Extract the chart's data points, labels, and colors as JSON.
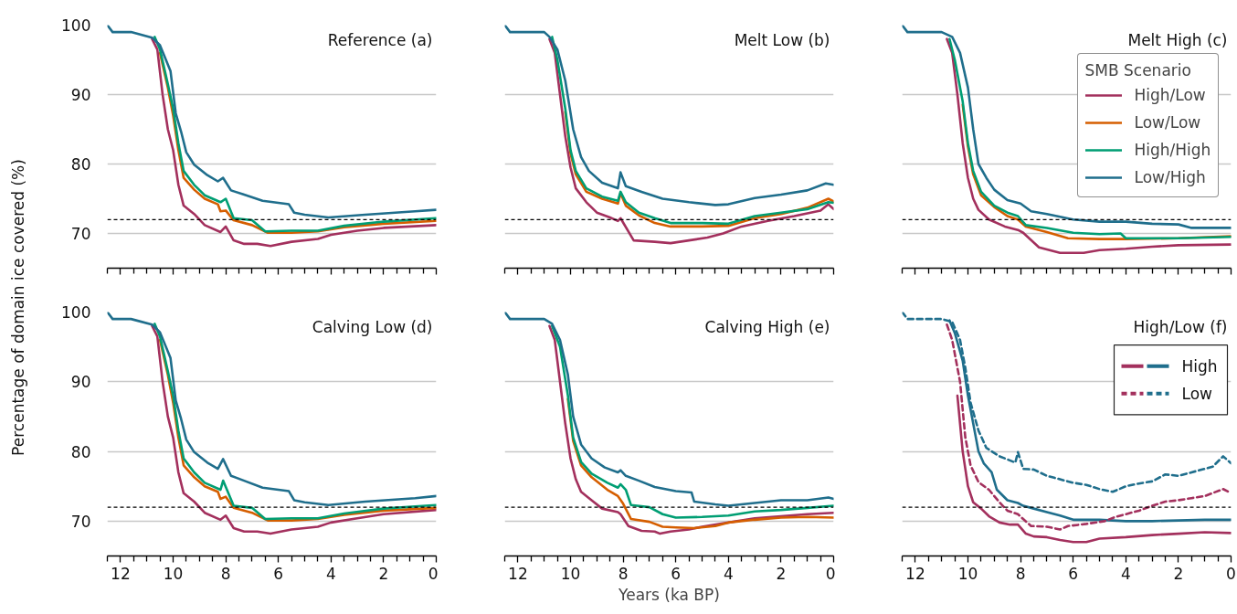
{
  "chart_data": [
    {
      "type": "line",
      "title": "Reference (a)",
      "xlim": [
        12.5,
        0
      ],
      "ylim": [
        65,
        100
      ],
      "yticks": [
        70,
        80,
        90,
        100
      ],
      "xticks": [
        0,
        {
          "value": 0.5,
          "label": null
        },
        {
          "value": 1,
          "label": null
        },
        {
          "value": 1.5,
          "label": null
        },
        2,
        {
          "value": 2.5,
          "label": null
        },
        {
          "value": 3,
          "label": null
        },
        {
          "value": 3.5,
          "label": null
        },
        4,
        {
          "value": 4.5,
          "label": null
        },
        {
          "value": 5,
          "label": null
        },
        {
          "value": 5.5,
          "label": null
        },
        6,
        {
          "value": 6.5,
          "label": null
        },
        {
          "value": 7,
          "label": null
        },
        {
          "value": 7.5,
          "label": null
        },
        8,
        {
          "value": 8.5,
          "label": null
        },
        {
          "value": 9,
          "label": null
        },
        {
          "value": 9.5,
          "label": null
        },
        10,
        {
          "value": 10.5,
          "label": null
        },
        {
          "value": 11,
          "label": null
        },
        {
          "value": 11.5,
          "label": null
        },
        12,
        {
          "value": 12.5,
          "label": null
        }
      ],
      "grid": "y",
      "tick_labels": "y",
      "legend": false,
      "ref_lines": [
        {
          "axis": "y",
          "value": 72,
          "color": "#000000",
          "line_style": "dashed"
        }
      ],
      "series": [
        {
          "color": "#a3305d",
          "x": [
            10.8,
            10.6,
            10.4,
            10.2,
            10,
            9.8,
            9.6,
            9.2,
            8.8,
            8.2,
            8.0,
            7.7,
            7.3,
            6.8,
            6.3,
            5.5,
            4.5,
            4,
            3,
            2,
            0
          ],
          "values": [
            98,
            96.5,
            90,
            85,
            82,
            77,
            74,
            72.8,
            71.2,
            70.2,
            71,
            69,
            68.5,
            68.5,
            68.2,
            68.8,
            69.2,
            69.8,
            70.4,
            70.8,
            71.2
          ]
        },
        {
          "color": "#d55e00",
          "x": [
            10.5,
            10.2,
            10,
            9.8,
            9.6,
            9.2,
            8.8,
            8.3,
            8.2,
            8.0,
            7.7,
            7,
            6.4,
            5.5,
            4.5,
            3.5,
            2,
            0
          ],
          "values": [
            96,
            91,
            87,
            82,
            78,
            76.3,
            75,
            74.2,
            73.2,
            73.3,
            71.9,
            71.2,
            70.1,
            70.1,
            70.3,
            70.9,
            71.4,
            71.8
          ]
        },
        {
          "color": "#009e73",
          "x": [
            10.7,
            10.5,
            10.2,
            10,
            9.8,
            9.6,
            9.2,
            8.8,
            8.2,
            8.0,
            7.7,
            7,
            6.5,
            5.5,
            4.5,
            3.5,
            2,
            0
          ],
          "values": [
            98.3,
            96.5,
            91.5,
            88,
            83,
            79,
            77,
            75.5,
            74.5,
            75,
            72.2,
            71.9,
            70.3,
            70.4,
            70.4,
            71.1,
            71.7,
            72.2
          ]
        },
        {
          "color": "#1f6e8c",
          "x": [
            12.5,
            12.3,
            11.6,
            10.8,
            10.5,
            10.1,
            9.9,
            9.7,
            9.5,
            9.2,
            8.7,
            8.3,
            8.1,
            7.8,
            7.3,
            6.6,
            5.6,
            5.4,
            5.0,
            4.1,
            2.7,
            0.8,
            0
          ],
          "values": [
            100,
            99,
            99,
            98.2,
            97.1,
            93.4,
            87.3,
            84.7,
            81.7,
            79.9,
            78.4,
            77.5,
            78,
            76.2,
            75.6,
            74.7,
            74.2,
            73,
            72.7,
            72.3,
            72.7,
            73.2,
            73.4
          ]
        }
      ]
    },
    {
      "type": "line",
      "title": "Melt Low (b)",
      "xlim": [
        12.5,
        0
      ],
      "ylim": [
        65,
        100
      ],
      "yticks": [
        70,
        80,
        90,
        100
      ],
      "xticks": [
        0,
        {
          "value": 0.5,
          "label": null
        },
        {
          "value": 1,
          "label": null
        },
        {
          "value": 1.5,
          "label": null
        },
        2,
        {
          "value": 2.5,
          "label": null
        },
        {
          "value": 3,
          "label": null
        },
        {
          "value": 3.5,
          "label": null
        },
        4,
        {
          "value": 4.5,
          "label": null
        },
        {
          "value": 5,
          "label": null
        },
        {
          "value": 5.5,
          "label": null
        },
        6,
        {
          "value": 6.5,
          "label": null
        },
        {
          "value": 7,
          "label": null
        },
        {
          "value": 7.5,
          "label": null
        },
        8,
        {
          "value": 8.5,
          "label": null
        },
        {
          "value": 9,
          "label": null
        },
        {
          "value": 9.5,
          "label": null
        },
        10,
        {
          "value": 10.5,
          "label": null
        },
        {
          "value": 11,
          "label": null
        },
        {
          "value": 11.5,
          "label": null
        },
        12,
        {
          "value": 12.5,
          "label": null
        }
      ],
      "grid": "y",
      "tick_labels": false,
      "legend": false,
      "ref_lines": [
        {
          "axis": "y",
          "value": 72,
          "color": "#000000",
          "line_style": "dashed"
        }
      ],
      "series": [
        {
          "color": "#a3305d",
          "x": [
            10.8,
            10.6,
            10.4,
            10.2,
            10,
            9.8,
            9.4,
            9,
            8.5,
            8.2,
            8.1,
            7.6,
            6.8,
            6.2,
            5.5,
            4.8,
            4.2,
            3.5,
            2.5,
            1.5,
            0.5,
            0.2,
            0
          ],
          "values": [
            98,
            96,
            90,
            84,
            79.5,
            76.5,
            74.5,
            73,
            72.3,
            71.8,
            72.2,
            69,
            68.8,
            68.6,
            69,
            69.4,
            70,
            71,
            71.8,
            72.5,
            73.3,
            74.2,
            73.5
          ]
        },
        {
          "color": "#d55e00",
          "x": [
            10.2,
            10,
            9.8,
            9.4,
            8.8,
            8.2,
            8.1,
            7.9,
            7.4,
            6.8,
            6.2,
            5,
            4,
            3,
            2,
            1,
            0.2,
            0
          ],
          "values": [
            87.5,
            81.5,
            78.5,
            76,
            75,
            74.3,
            75.8,
            74,
            72.6,
            71.5,
            71,
            71,
            71.1,
            72.2,
            72.8,
            73.7,
            75,
            74.6
          ]
        },
        {
          "color": "#009e73",
          "x": [
            10.7,
            10.5,
            10.2,
            10,
            9.8,
            9.4,
            8.8,
            8.2,
            8.1,
            7.9,
            7.4,
            6.8,
            6.2,
            5,
            4,
            3,
            2,
            1,
            0.2,
            0
          ],
          "values": [
            98.3,
            95,
            88,
            82,
            79,
            76.5,
            75.3,
            74.7,
            76,
            74.5,
            73,
            72.2,
            71.5,
            71.5,
            71.4,
            72.5,
            73,
            73.5,
            74.5,
            74.4
          ]
        },
        {
          "color": "#1f6e8c",
          "x": [
            12.5,
            12.3,
            11,
            10.8,
            10.5,
            10.2,
            9.9,
            9.6,
            9.3,
            8.8,
            8.2,
            8.1,
            7.9,
            7.3,
            6.5,
            5.5,
            4.5,
            4,
            3,
            2,
            1,
            0.3,
            0
          ],
          "values": [
            100,
            99,
            99,
            98.3,
            96.5,
            92,
            85,
            81,
            79,
            77.3,
            76.5,
            78.8,
            76.8,
            76,
            75,
            74.5,
            74.1,
            74.2,
            75.1,
            75.6,
            76.2,
            77.2,
            77
          ]
        }
      ]
    },
    {
      "type": "line",
      "title": "Melt High (c)",
      "legend_title": "SMB Scenario",
      "xlim": [
        12.5,
        0
      ],
      "ylim": [
        65,
        100
      ],
      "yticks": [
        70,
        80,
        90,
        100
      ],
      "xticks": [
        0,
        {
          "value": 0.5,
          "label": null
        },
        {
          "value": 1,
          "label": null
        },
        {
          "value": 1.5,
          "label": null
        },
        2,
        {
          "value": 2.5,
          "label": null
        },
        {
          "value": 3,
          "label": null
        },
        {
          "value": 3.5,
          "label": null
        },
        4,
        {
          "value": 4.5,
          "label": null
        },
        {
          "value": 5,
          "label": null
        },
        {
          "value": 5.5,
          "label": null
        },
        6,
        {
          "value": 6.5,
          "label": null
        },
        {
          "value": 7,
          "label": null
        },
        {
          "value": 7.5,
          "label": null
        },
        8,
        {
          "value": 8.5,
          "label": null
        },
        {
          "value": 9,
          "label": null
        },
        {
          "value": 9.5,
          "label": null
        },
        10,
        {
          "value": 10.5,
          "label": null
        },
        {
          "value": 11,
          "label": null
        },
        {
          "value": 11.5,
          "label": null
        },
        12,
        {
          "value": 12.5,
          "label": null
        }
      ],
      "grid": "y",
      "tick_labels": false,
      "legend": "top right",
      "ref_lines": [
        {
          "axis": "y",
          "value": 72,
          "color": "#000000",
          "line_style": "dashed"
        }
      ],
      "series": [
        {
          "name": "High/Low",
          "color": "#a3305d",
          "x": [
            10.8,
            10.6,
            10.4,
            10.2,
            10,
            9.8,
            9.6,
            9.2,
            8.6,
            8.1,
            7.9,
            7.3,
            6.5,
            5.6,
            5,
            4,
            3,
            2,
            0
          ],
          "values": [
            98,
            96,
            90,
            83,
            78,
            75,
            73.4,
            72,
            71,
            70.5,
            70.1,
            68,
            67.2,
            67.2,
            67.6,
            67.8,
            68.1,
            68.3,
            68.4
          ]
        },
        {
          "name": "Low/Low",
          "color": "#d55e00",
          "x": [
            10.2,
            10,
            9.8,
            9.5,
            9,
            8.5,
            8.1,
            7.8,
            7,
            6.2,
            5,
            4,
            2,
            0
          ],
          "values": [
            88.5,
            82.5,
            78.5,
            75.5,
            73.8,
            72.5,
            72,
            71,
            70.2,
            69.3,
            69.2,
            69.2,
            69.3,
            69.6
          ]
        },
        {
          "name": "High/High",
          "color": "#009e73",
          "x": [
            10.7,
            10.5,
            10.2,
            10,
            9.8,
            9.5,
            9,
            8.5,
            8.1,
            7.8,
            7,
            6,
            5,
            4.2,
            4,
            2,
            0
          ],
          "values": [
            98,
            95,
            89,
            83,
            79,
            76,
            74,
            73,
            72.5,
            71.2,
            70.8,
            70.1,
            69.9,
            70,
            69.3,
            69.3,
            69.5
          ]
        },
        {
          "name": "Low/High",
          "color": "#1f6e8c",
          "x": [
            12.5,
            12.3,
            11,
            10.6,
            10.3,
            10,
            9.8,
            9.6,
            9.3,
            9,
            8.5,
            8,
            7.6,
            7,
            6,
            5,
            4,
            3,
            2,
            1.5,
            0
          ],
          "values": [
            100,
            99,
            99,
            98.3,
            96,
            91,
            85,
            80,
            78,
            76.3,
            74.8,
            74.3,
            73.2,
            72.8,
            72,
            71.7,
            71.7,
            71.4,
            71.3,
            70.8,
            70.8
          ]
        }
      ]
    },
    {
      "type": "line",
      "title": "Calving Low (d)",
      "ylabel": "Percentage of domain ice covered (%)",
      "xlim": [
        12.5,
        0
      ],
      "ylim": [
        65,
        100
      ],
      "yticks": [
        70,
        80,
        90,
        100
      ],
      "xticks": [
        0,
        {
          "value": 0.5,
          "label": null
        },
        {
          "value": 1,
          "label": null
        },
        {
          "value": 1.5,
          "label": null
        },
        2,
        {
          "value": 2.5,
          "label": null
        },
        {
          "value": 3,
          "label": null
        },
        {
          "value": 3.5,
          "label": null
        },
        4,
        {
          "value": 4.5,
          "label": null
        },
        {
          "value": 5,
          "label": null
        },
        {
          "value": 5.5,
          "label": null
        },
        6,
        {
          "value": 6.5,
          "label": null
        },
        {
          "value": 7,
          "label": null
        },
        {
          "value": 7.5,
          "label": null
        },
        8,
        {
          "value": 8.5,
          "label": null
        },
        {
          "value": 9,
          "label": null
        },
        {
          "value": 9.5,
          "label": null
        },
        10,
        {
          "value": 10.5,
          "label": null
        },
        {
          "value": 11,
          "label": null
        },
        {
          "value": 11.5,
          "label": null
        },
        12,
        {
          "value": 12.5,
          "label": null
        }
      ],
      "grid": "y",
      "legend": false,
      "ref_lines": [
        {
          "axis": "y",
          "value": 72,
          "color": "#000000",
          "line_style": "dashed"
        }
      ],
      "series": [
        {
          "color": "#a3305d",
          "x": [
            10.8,
            10.6,
            10.4,
            10.2,
            10,
            9.8,
            9.6,
            9.2,
            8.8,
            8.2,
            8.0,
            7.7,
            7.3,
            6.8,
            6.3,
            5.5,
            4.5,
            4,
            3,
            2,
            0
          ],
          "values": [
            98,
            96.5,
            90,
            85,
            82,
            77,
            74,
            72.8,
            71.2,
            70.2,
            70.8,
            69,
            68.5,
            68.5,
            68.2,
            68.8,
            69.2,
            69.8,
            70.4,
            71,
            71.6
          ]
        },
        {
          "color": "#d55e00",
          "x": [
            10.5,
            10.2,
            10,
            9.8,
            9.6,
            9.2,
            8.8,
            8.3,
            8.2,
            8.0,
            7.7,
            7,
            6.4,
            5.5,
            4.5,
            3.5,
            2,
            0
          ],
          "values": [
            96,
            91,
            87,
            82,
            78,
            76.3,
            75,
            74.2,
            73.2,
            73.5,
            71.9,
            71.2,
            70.1,
            70.1,
            70.3,
            70.9,
            71.5,
            71.9
          ]
        },
        {
          "color": "#009e73",
          "x": [
            10.7,
            10.5,
            10.2,
            10,
            9.8,
            9.6,
            9.2,
            8.8,
            8.2,
            8.1,
            7.7,
            7,
            6.5,
            5.5,
            4.5,
            3.5,
            2,
            0
          ],
          "values": [
            98.3,
            96.5,
            91.5,
            88,
            83,
            79,
            77,
            75.5,
            74.5,
            75.8,
            72.2,
            71.9,
            70.3,
            70.4,
            70.4,
            71.1,
            71.8,
            72.3
          ]
        },
        {
          "color": "#1f6e8c",
          "x": [
            12.5,
            12.3,
            11.6,
            10.8,
            10.5,
            10.1,
            9.9,
            9.7,
            9.5,
            9.2,
            8.7,
            8.3,
            8.1,
            7.8,
            7.3,
            6.6,
            5.6,
            5.4,
            5.0,
            4.1,
            2.7,
            0.8,
            0
          ],
          "values": [
            100,
            99,
            99,
            98.2,
            97.1,
            93.4,
            87.3,
            84.7,
            81.7,
            79.9,
            78.4,
            77.5,
            78.9,
            76.5,
            75.8,
            74.8,
            74.3,
            73,
            72.7,
            72.3,
            72.8,
            73.3,
            73.6
          ]
        }
      ]
    },
    {
      "type": "line",
      "title": "Calving High (e)",
      "xlabel": "Years (ka BP)",
      "xlim": [
        12.5,
        0
      ],
      "ylim": [
        65,
        100
      ],
      "yticks": [
        70,
        80,
        90,
        100
      ],
      "xticks": [
        0,
        {
          "value": 0.5,
          "label": null
        },
        {
          "value": 1,
          "label": null
        },
        {
          "value": 1.5,
          "label": null
        },
        2,
        {
          "value": 2.5,
          "label": null
        },
        {
          "value": 3,
          "label": null
        },
        {
          "value": 3.5,
          "label": null
        },
        4,
        {
          "value": 4.5,
          "label": null
        },
        {
          "value": 5,
          "label": null
        },
        {
          "value": 5.5,
          "label": null
        },
        6,
        {
          "value": 6.5,
          "label": null
        },
        {
          "value": 7,
          "label": null
        },
        {
          "value": 7.5,
          "label": null
        },
        8,
        {
          "value": 8.5,
          "label": null
        },
        {
          "value": 9,
          "label": null
        },
        {
          "value": 9.5,
          "label": null
        },
        10,
        {
          "value": 10.5,
          "label": null
        },
        {
          "value": 11,
          "label": null
        },
        {
          "value": 11.5,
          "label": null
        },
        12,
        {
          "value": 12.5,
          "label": null
        }
      ],
      "grid": "y",
      "tick_labels": "x",
      "legend": false,
      "ref_lines": [
        {
          "axis": "y",
          "value": 72,
          "color": "#000000",
          "line_style": "dashed"
        }
      ],
      "series": [
        {
          "color": "#a3305d",
          "x": [
            10.8,
            10.6,
            10.4,
            10.2,
            10,
            9.8,
            9.6,
            9.2,
            8.8,
            8.2,
            8.1,
            7.8,
            7.3,
            6.8,
            6.6,
            6.2,
            5.5,
            5,
            4,
            3,
            2,
            1,
            0
          ],
          "values": [
            98,
            96,
            90,
            84,
            79,
            76,
            74.2,
            73,
            71.8,
            71.3,
            71,
            69.3,
            68.6,
            68.5,
            68.2,
            68.5,
            68.8,
            69.2,
            69.8,
            70.4,
            70.7,
            71,
            71.2
          ]
        },
        {
          "color": "#d55e00",
          "x": [
            10.1,
            9.9,
            9.6,
            9.2,
            8.6,
            8.2,
            8.0,
            7.7,
            7,
            6.5,
            6,
            5.3,
            4.5,
            4,
            3,
            2,
            1,
            0
          ],
          "values": [
            87.5,
            81.5,
            78,
            76.3,
            74.5,
            73.6,
            72.5,
            70.3,
            69.9,
            69.2,
            69.1,
            69,
            69.3,
            69.8,
            70.2,
            70.5,
            70.6,
            70.5
          ]
        },
        {
          "color": "#009e73",
          "x": [
            10.7,
            10.4,
            10.1,
            9.9,
            9.6,
            9.2,
            8.6,
            8.2,
            8.1,
            7.9,
            7.7,
            7,
            6.5,
            6,
            5,
            4,
            3,
            2,
            1,
            0
          ],
          "values": [
            98,
            95,
            88,
            82,
            78.5,
            76.8,
            75.5,
            74.8,
            75.3,
            74.5,
            72.3,
            72,
            71,
            70.5,
            70.6,
            70.8,
            71.4,
            71.6,
            71.9,
            72.2
          ]
        },
        {
          "color": "#1f6e8c",
          "x": [
            12.5,
            12.3,
            11,
            10.7,
            10.4,
            10.1,
            9.9,
            9.6,
            9.2,
            8.7,
            8.2,
            8.1,
            7.9,
            7.4,
            6.8,
            6,
            5.4,
            5.3,
            4.5,
            4,
            3,
            2,
            1,
            0.2,
            0
          ],
          "values": [
            100,
            99,
            99,
            98.3,
            96,
            91,
            85,
            81,
            79,
            77.7,
            77,
            77.3,
            76.5,
            75.8,
            74.9,
            74.3,
            74.1,
            72.8,
            72.4,
            72.2,
            72.6,
            73,
            73,
            73.4,
            73.2
          ]
        }
      ]
    },
    {
      "type": "line",
      "title": "High/Low (f)",
      "xlim": [
        12.5,
        0
      ],
      "ylim": [
        65,
        100
      ],
      "yticks": [
        70,
        80,
        90,
        100
      ],
      "xticks": [
        0,
        {
          "value": 0.5,
          "label": null
        },
        {
          "value": 1,
          "label": null
        },
        {
          "value": 1.5,
          "label": null
        },
        2,
        {
          "value": 2.5,
          "label": null
        },
        {
          "value": 3,
          "label": null
        },
        {
          "value": 3.5,
          "label": null
        },
        4,
        {
          "value": 4.5,
          "label": null
        },
        {
          "value": 5,
          "label": null
        },
        {
          "value": 5.5,
          "label": null
        },
        6,
        {
          "value": 6.5,
          "label": null
        },
        {
          "value": 7,
          "label": null
        },
        {
          "value": 7.5,
          "label": null
        },
        8,
        {
          "value": 8.5,
          "label": null
        },
        {
          "value": 9,
          "label": null
        },
        {
          "value": 9.5,
          "label": null
        },
        10,
        {
          "value": 10.5,
          "label": null
        },
        {
          "value": 11,
          "label": null
        },
        {
          "value": 11.5,
          "label": null
        },
        12,
        {
          "value": 12.5,
          "label": null
        }
      ],
      "grid": "y",
      "tick_labels": "x",
      "legend": "top right",
      "ref_lines": [
        {
          "axis": "y",
          "value": 72,
          "color": "#000000",
          "line_style": "dashed"
        }
      ],
      "series": [
        {
          "color": "#a3305d",
          "line_style": "solid",
          "x": [
            10.4,
            10.2,
            10,
            9.8,
            9.5,
            9.2,
            8.8,
            8.4,
            8.1,
            7.8,
            7.5,
            7,
            6.5,
            6,
            5.5,
            5,
            4,
            3,
            2,
            1,
            0
          ],
          "values": [
            88,
            80,
            75,
            72.7,
            71.8,
            70.7,
            69.8,
            69.5,
            69.5,
            68.2,
            67.8,
            67.7,
            67.3,
            67,
            67,
            67.5,
            67.7,
            68,
            68.2,
            68.4,
            68.3
          ]
        },
        {
          "name": "High",
          "color": "#1f6e8c",
          "line_style": "solid",
          "x": [
            10.7,
            10.5,
            10.2,
            10,
            9.8,
            9.6,
            9.4,
            9.1,
            8.9,
            8.5,
            8.1,
            7.9,
            7.5,
            7,
            6.5,
            6,
            5,
            4,
            3,
            2,
            1,
            0
          ],
          "values": [
            98.8,
            97,
            93,
            88,
            84,
            80,
            78.3,
            77,
            74.5,
            73,
            72.6,
            72.2,
            71.8,
            71.3,
            70.8,
            70.2,
            70.2,
            70,
            70,
            70.1,
            70.2,
            70.2
          ]
        },
        {
          "color": "#a3305d",
          "line_style": "dashed",
          "x": [
            10.8,
            10.6,
            10.3,
            10.1,
            9.9,
            9.6,
            9.2,
            8.8,
            8.5,
            8.1,
            7.9,
            7.6,
            7,
            6.5,
            6.2,
            5.5,
            4.8,
            4.4,
            4,
            3.5,
            3,
            2.5,
            2,
            1.5,
            1,
            0.3,
            0
          ],
          "values": [
            98.2,
            96,
            90,
            82,
            78,
            75.6,
            74.5,
            72.7,
            71.5,
            71,
            70.3,
            69.3,
            69.2,
            68.8,
            69.3,
            69.6,
            70,
            70.6,
            71,
            71.5,
            72.2,
            72.8,
            73,
            73.3,
            73.6,
            74.6,
            74
          ]
        },
        {
          "name": "Low",
          "color": "#1f6e8c",
          "line_style": "dashed",
          "x": [
            12.5,
            12.3,
            11,
            10.6,
            10.3,
            10.1,
            9.9,
            9.6,
            9.3,
            8.8,
            8.2,
            8.1,
            7.9,
            7.5,
            7,
            6,
            5.5,
            5,
            4.5,
            4,
            3.5,
            3,
            2.5,
            2,
            1.5,
            0.7,
            0.3,
            0
          ],
          "values": [
            100,
            99,
            99,
            98.6,
            96,
            92,
            87,
            83,
            80.5,
            79.3,
            78.4,
            79.9,
            77.5,
            77.4,
            76.5,
            75.5,
            75.2,
            74.6,
            74.2,
            75,
            75.4,
            75.7,
            76.7,
            76.5,
            77,
            77.8,
            79.3,
            78.3
          ]
        }
      ]
    }
  ]
}
